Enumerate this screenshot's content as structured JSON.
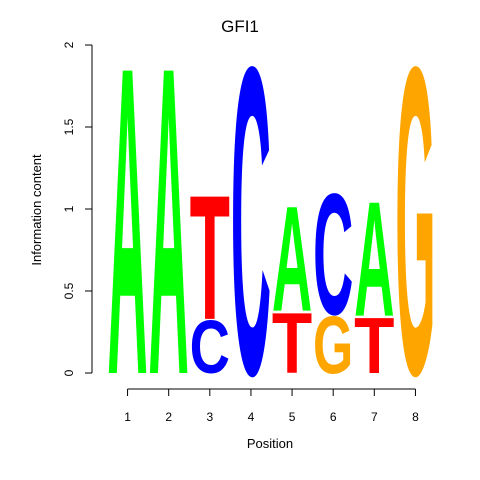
{
  "chart_data": {
    "type": "sequence-logo",
    "title": "GFI1",
    "xlabel": "Position",
    "ylabel": "Information content",
    "ylim": [
      0,
      2
    ],
    "yticks": [
      "0",
      "0.5",
      "1",
      "1.5",
      "2"
    ],
    "xticks": [
      "1",
      "2",
      "3",
      "4",
      "5",
      "6",
      "7",
      "8"
    ],
    "colors": {
      "A": "#00ff00",
      "C": "#0000ff",
      "G": "#ffa500",
      "T": "#ff0000"
    },
    "positions": [
      {
        "position": "1",
        "letters": [
          {
            "letter": "A",
            "bits": 1.93
          }
        ]
      },
      {
        "position": "2",
        "letters": [
          {
            "letter": "A",
            "bits": 1.93
          }
        ]
      },
      {
        "position": "3",
        "letters": [
          {
            "letter": "C",
            "bits": 0.33
          },
          {
            "letter": "T",
            "bits": 0.78
          }
        ]
      },
      {
        "position": "4",
        "letters": [
          {
            "letter": "C",
            "bits": 1.93
          }
        ]
      },
      {
        "position": "5",
        "letters": [
          {
            "letter": "T",
            "bits": 0.38
          },
          {
            "letter": "A",
            "bits": 0.66
          }
        ]
      },
      {
        "position": "6",
        "letters": [
          {
            "letter": "G",
            "bits": 0.36
          },
          {
            "letter": "C",
            "bits": 0.76
          }
        ]
      },
      {
        "position": "7",
        "letters": [
          {
            "letter": "T",
            "bits": 0.35
          },
          {
            "letter": "A",
            "bits": 0.72
          }
        ]
      },
      {
        "position": "8",
        "letters": [
          {
            "letter": "G",
            "bits": 1.93
          }
        ]
      }
    ]
  }
}
